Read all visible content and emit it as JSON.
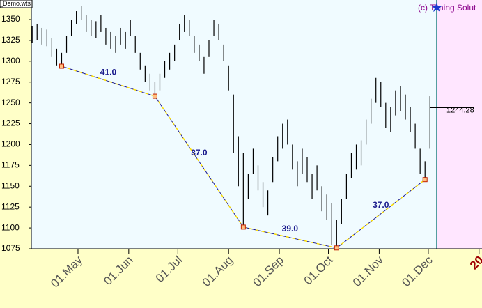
{
  "chart_data": {
    "type": "ohlc",
    "file_label": "es_Demo.wts",
    "credit": "(c) Timing Solut",
    "xlim": [
      92.5,
      367.8
    ],
    "ylim": [
      1075,
      1373.4
    ],
    "yticks": [
      1075,
      1100,
      1125,
      1150,
      1175,
      1200,
      1225,
      1250,
      1275,
      1300,
      1325,
      1350
    ],
    "xticks": [
      {
        "value": 121,
        "label": "01.May"
      },
      {
        "value": 152,
        "label": "01.Jun"
      },
      {
        "value": 182,
        "label": "01.Jul"
      },
      {
        "value": 213,
        "label": "01.Aug"
      },
      {
        "value": 244,
        "label": "01.Sep"
      },
      {
        "value": 274,
        "label": "01.Oct"
      },
      {
        "value": 305,
        "label": "01.Nov"
      },
      {
        "value": 335,
        "label": "01.Dec"
      },
      {
        "value": 366,
        "label": "20"
      }
    ],
    "bars": {
      "x": [
        93,
        96,
        99,
        102,
        105,
        108,
        111,
        114,
        117,
        120,
        123,
        126,
        129,
        132,
        135,
        138,
        141,
        144,
        147,
        150,
        153,
        156,
        159,
        162,
        165,
        168,
        171,
        174,
        177,
        180,
        183,
        186,
        189,
        192,
        195,
        198,
        201,
        204,
        207,
        210,
        213,
        216,
        219,
        222,
        225,
        228,
        231,
        234,
        237,
        240,
        243,
        246,
        249,
        252,
        255,
        258,
        261,
        264,
        267,
        270,
        273,
        276,
        279,
        282,
        285,
        288,
        291,
        294,
        297,
        300,
        303,
        306,
        309,
        312,
        315,
        318,
        321,
        324,
        327,
        330,
        333,
        336
      ],
      "high": [
        1342,
        1345,
        1340,
        1338,
        1328,
        1315,
        1310,
        1330,
        1350,
        1360,
        1366,
        1355,
        1350,
        1348,
        1355,
        1340,
        1335,
        1330,
        1340,
        1335,
        1350,
        1330,
        1310,
        1295,
        1285,
        1275,
        1285,
        1300,
        1310,
        1320,
        1345,
        1355,
        1350,
        1330,
        1320,
        1305,
        1325,
        1350,
        1345,
        1320,
        1295,
        1260,
        1210,
        1190,
        1165,
        1195,
        1175,
        1155,
        1145,
        1185,
        1210,
        1225,
        1230,
        1200,
        1180,
        1195,
        1185,
        1165,
        1175,
        1150,
        1140,
        1130,
        1110,
        1135,
        1165,
        1190,
        1200,
        1205,
        1230,
        1255,
        1280,
        1275,
        1250,
        1245,
        1265,
        1270,
        1260,
        1245,
        1225,
        1195,
        1180,
        1258
      ],
      "low": [
        1322,
        1325,
        1320,
        1318,
        1305,
        1295,
        1294,
        1310,
        1330,
        1345,
        1350,
        1335,
        1330,
        1328,
        1335,
        1320,
        1315,
        1310,
        1320,
        1315,
        1330,
        1310,
        1290,
        1275,
        1265,
        1258,
        1265,
        1280,
        1290,
        1300,
        1325,
        1335,
        1330,
        1310,
        1300,
        1285,
        1305,
        1330,
        1325,
        1300,
        1265,
        1190,
        1150,
        1101,
        1135,
        1165,
        1145,
        1125,
        1115,
        1155,
        1180,
        1195,
        1200,
        1170,
        1150,
        1165,
        1155,
        1135,
        1145,
        1120,
        1110,
        1080,
        1076,
        1105,
        1135,
        1160,
        1170,
        1175,
        1200,
        1225,
        1250,
        1245,
        1220,
        1215,
        1235,
        1240,
        1230,
        1215,
        1195,
        1165,
        1158,
        1195
      ]
    },
    "pivots": {
      "x": [
        111,
        168,
        222,
        279,
        333
      ],
      "values": [
        1294,
        1258,
        1101,
        1076,
        1158
      ]
    },
    "segment_labels": [
      "41.0",
      "37.0",
      "39.0",
      "37.0"
    ],
    "last_value": 1244.28
  }
}
